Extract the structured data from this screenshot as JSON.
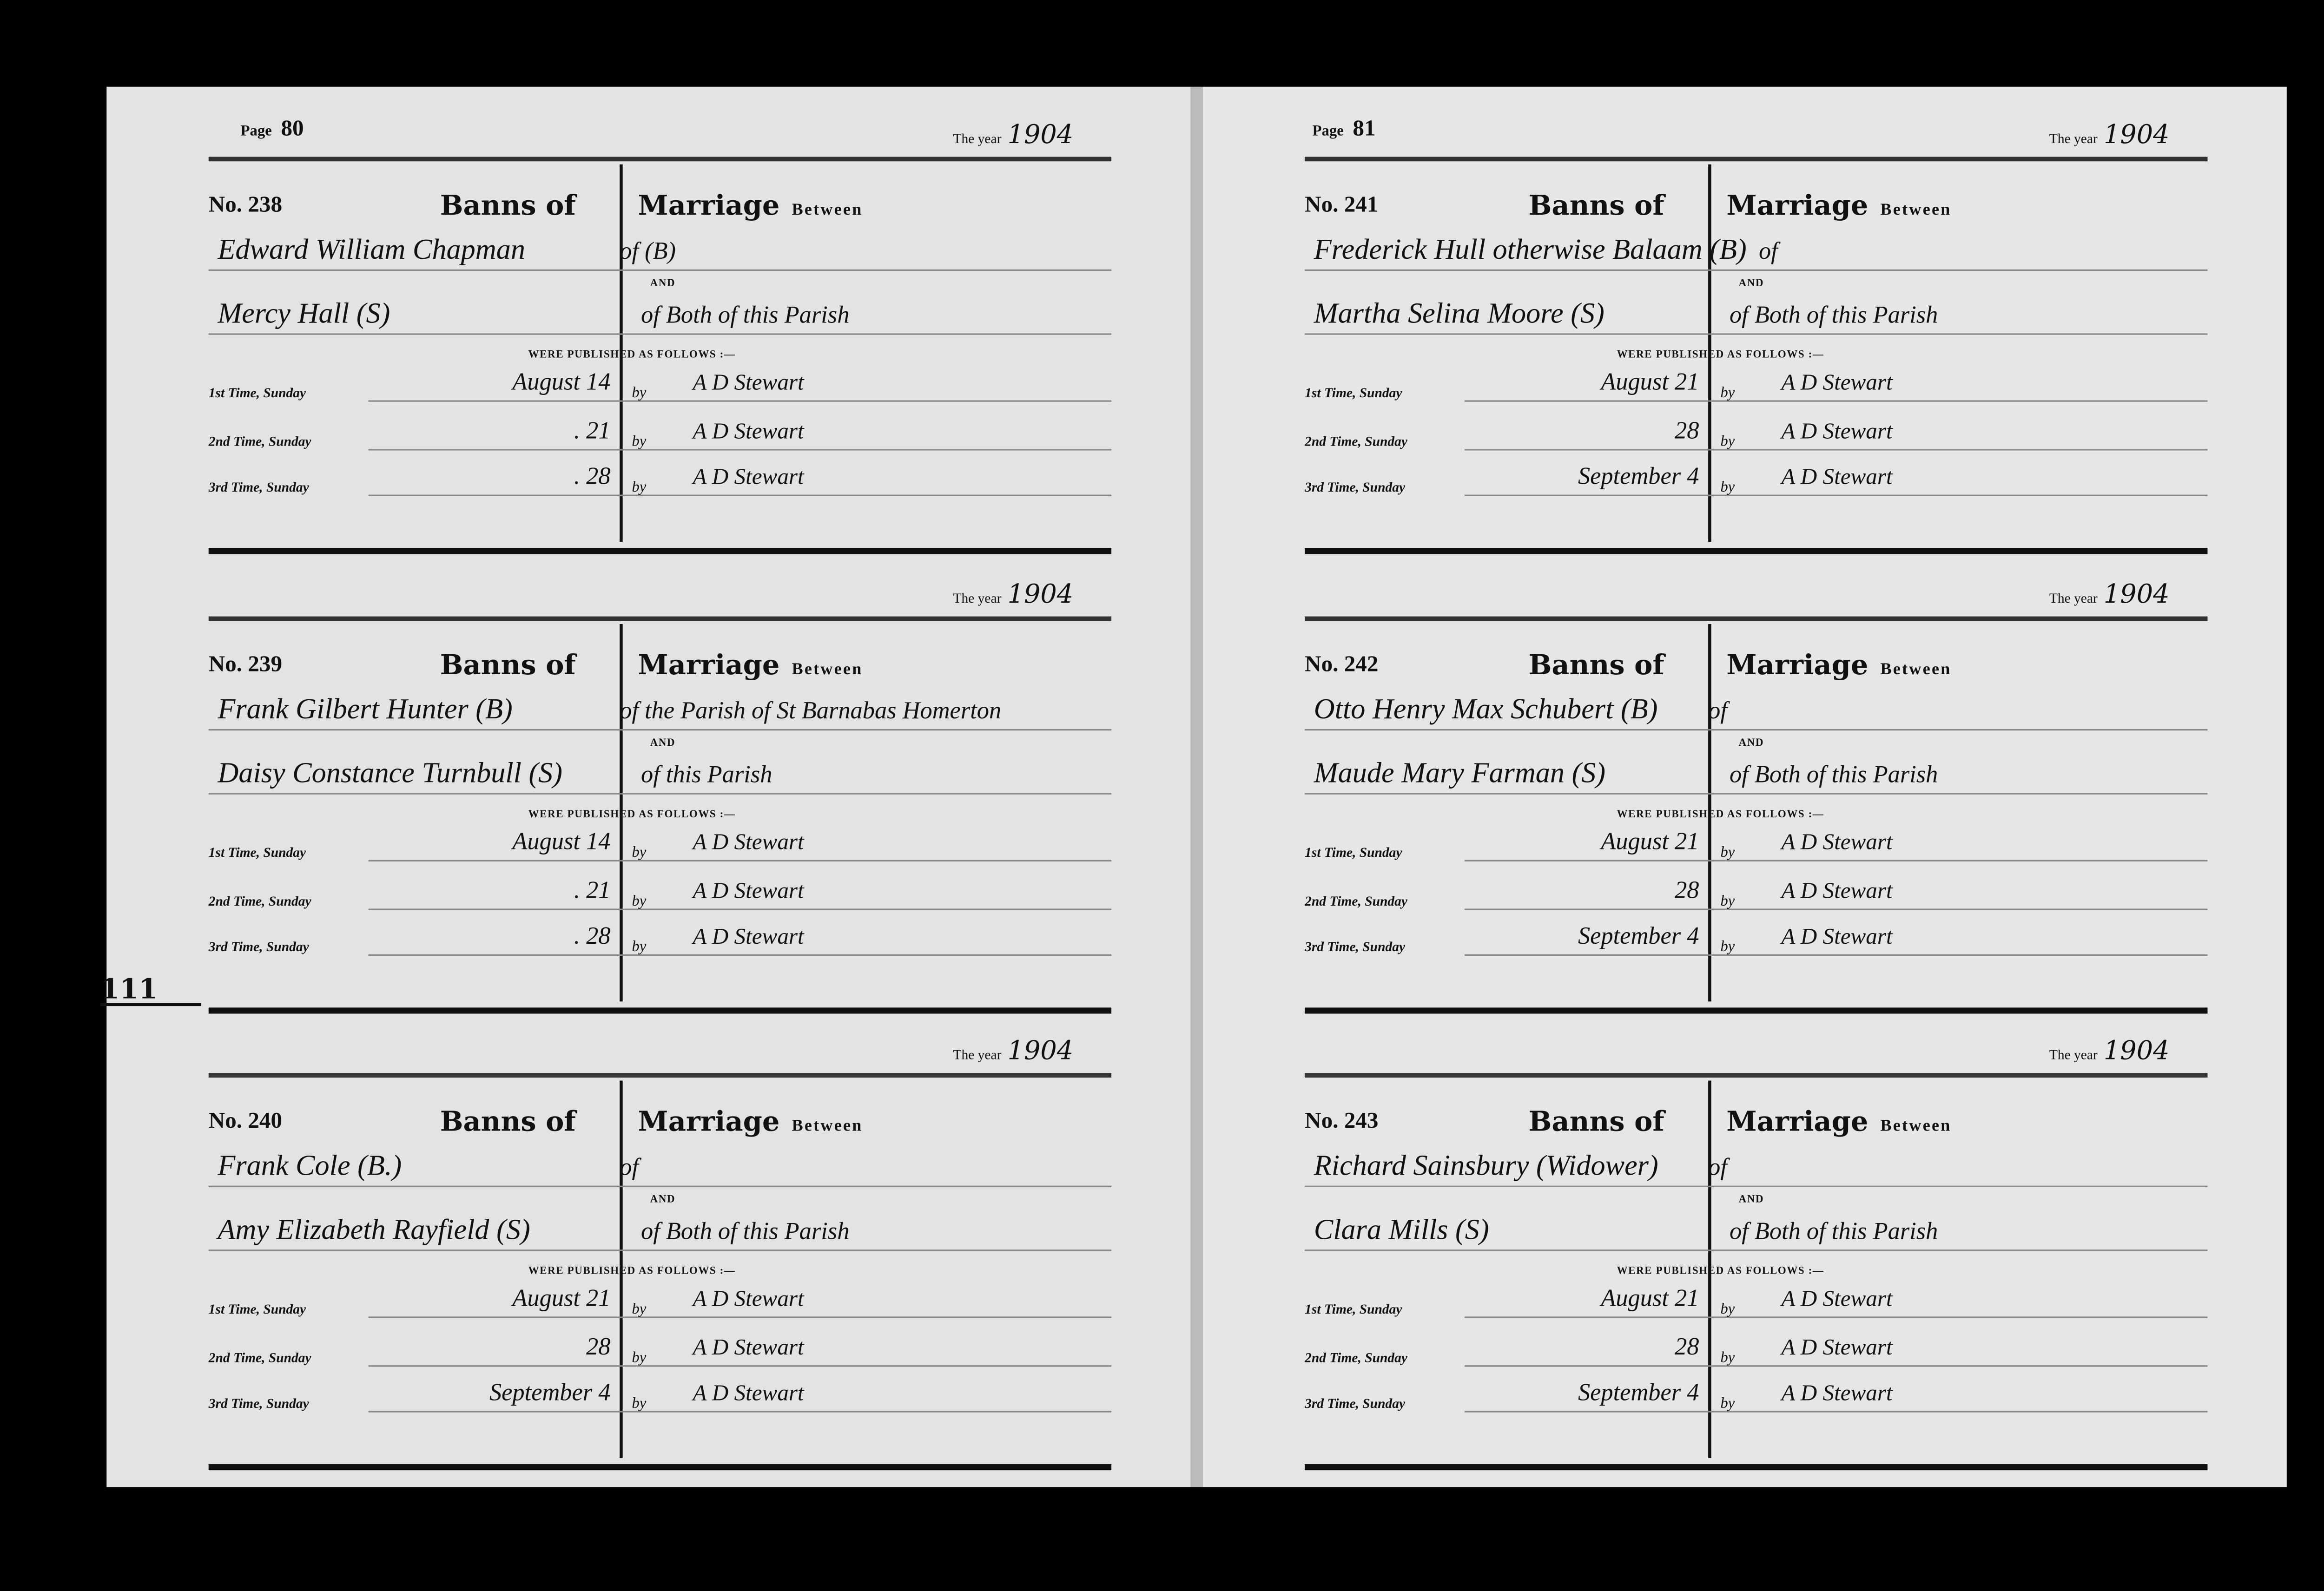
{
  "left_page": {
    "page_label": "Page",
    "page_number": "80",
    "entries": [
      {
        "year_label": "The year",
        "year": "1904",
        "no": "No. 238",
        "banns": "Banns of",
        "marriage": "Marriage",
        "between": "Between",
        "name1": "Edward William Chapman",
        "status1": "of (B)",
        "and": "AND",
        "name2": "Mercy Hall   (S)",
        "parish": "of  Both of this Parish",
        "published": "WERE PUBLISHED AS FOLLOWS :—",
        "times": [
          {
            "label": "1st Time, Sunday",
            "date": "August  14",
            "by": "by",
            "officiant": "A  D  Stewart"
          },
          {
            "label": "2nd Time, Sunday",
            "date": ".   21",
            "by": "by",
            "officiant": "A  D  Stewart"
          },
          {
            "label": "3rd Time, Sunday",
            "date": ".   28",
            "by": "by",
            "officiant": "A  D  Stewart"
          }
        ]
      },
      {
        "year_label": "The year",
        "year": "1904",
        "no": "No. 239",
        "banns": "Banns of",
        "marriage": "Marriage",
        "between": "Between",
        "name1": "Frank Gilbert Hunter  (B)",
        "status1": "of the Parish of St Barnabas Homerton",
        "and": "AND",
        "name2": "Daisy Constance Turnbull (S)",
        "parish": "of this Parish",
        "published": "WERE PUBLISHED AS FOLLOWS :—",
        "times": [
          {
            "label": "1st Time, Sunday",
            "date": "August  14",
            "by": "by",
            "officiant": "A  D  Stewart"
          },
          {
            "label": "2nd Time, Sunday",
            "date": ".   21",
            "by": "by",
            "officiant": "A  D  Stewart"
          },
          {
            "label": "3rd Time, Sunday",
            "date": ".   28",
            "by": "by",
            "officiant": "A  D  Stewart"
          }
        ]
      },
      {
        "year_label": "The year",
        "year": "1904",
        "no": "No. 240",
        "banns": "Banns of",
        "marriage": "Marriage",
        "between": "Between",
        "name1": "Frank Cole  (B.)",
        "status1": "of",
        "and": "AND",
        "name2": "Amy Elizabeth Rayfield (S)",
        "parish": "of  Both of this Parish",
        "published": "WERE PUBLISHED AS FOLLOWS :—",
        "times": [
          {
            "label": "1st Time, Sunday",
            "date": "August  21",
            "by": "by",
            "officiant": "A  D  Stewart"
          },
          {
            "label": "2nd Time, Sunday",
            "date": "28",
            "by": "by",
            "officiant": "A  D  Stewart"
          },
          {
            "label": "3rd Time, Sunday",
            "date": "September  4",
            "by": "by",
            "officiant": "A  D  Stewart"
          }
        ]
      }
    ]
  },
  "right_page": {
    "page_label": "Page",
    "page_number": "81",
    "entries": [
      {
        "year_label": "The year",
        "year": "1904",
        "no": "No. 241",
        "banns": "Banns of",
        "marriage": "Marriage",
        "between": "Between",
        "name1": "Frederick Hull otherwise Balaam (B)",
        "status1": "of",
        "and": "AND",
        "name2": "Martha Selina Moore (S)",
        "parish": "of  Both of this Parish",
        "published": "WERE PUBLISHED AS FOLLOWS :—",
        "times": [
          {
            "label": "1st Time, Sunday",
            "date": "August  21",
            "by": "by",
            "officiant": "A  D  Stewart"
          },
          {
            "label": "2nd Time, Sunday",
            "date": "28",
            "by": "by",
            "officiant": "A  D  Stewart"
          },
          {
            "label": "3rd Time, Sunday",
            "date": "September  4",
            "by": "by",
            "officiant": "A  D  Stewart"
          }
        ]
      },
      {
        "year_label": "The year",
        "year": "1904",
        "no": "No. 242",
        "banns": "Banns of",
        "marriage": "Marriage",
        "between": "Between",
        "name1": "Otto Henry Max Schubert (B)",
        "status1": "of",
        "and": "AND",
        "name2": "Maude Mary Farman  (S)",
        "parish": "of  Both of this Parish",
        "published": "WERE PUBLISHED AS FOLLOWS :—",
        "times": [
          {
            "label": "1st Time, Sunday",
            "date": "August  21",
            "by": "by",
            "officiant": "A  D  Stewart"
          },
          {
            "label": "2nd Time, Sunday",
            "date": "28",
            "by": "by",
            "officiant": "A  D  Stewart"
          },
          {
            "label": "3rd Time, Sunday",
            "date": "September  4",
            "by": "by",
            "officiant": "A  D  Stewart"
          }
        ]
      },
      {
        "year_label": "The year",
        "year": "1904",
        "no": "No. 243",
        "banns": "Banns of",
        "marriage": "Marriage",
        "between": "Between",
        "name1": "Richard Sainsbury (Widower)",
        "status1": "of",
        "and": "AND",
        "name2": "Clara Mills   (S)",
        "parish": "of  Both of this Parish",
        "published": "WERE PUBLISHED AS FOLLOWS :—",
        "times": [
          {
            "label": "1st Time, Sunday",
            "date": "August  21",
            "by": "by",
            "officiant": "A  D  Stewart"
          },
          {
            "label": "2nd Time, Sunday",
            "date": "28",
            "by": "by",
            "officiant": "A  D  Stewart"
          },
          {
            "label": "3rd Time, Sunday",
            "date": "September  4",
            "by": "by",
            "officiant": "A  D  Stewart"
          }
        ]
      }
    ]
  },
  "margin_mark": "111"
}
